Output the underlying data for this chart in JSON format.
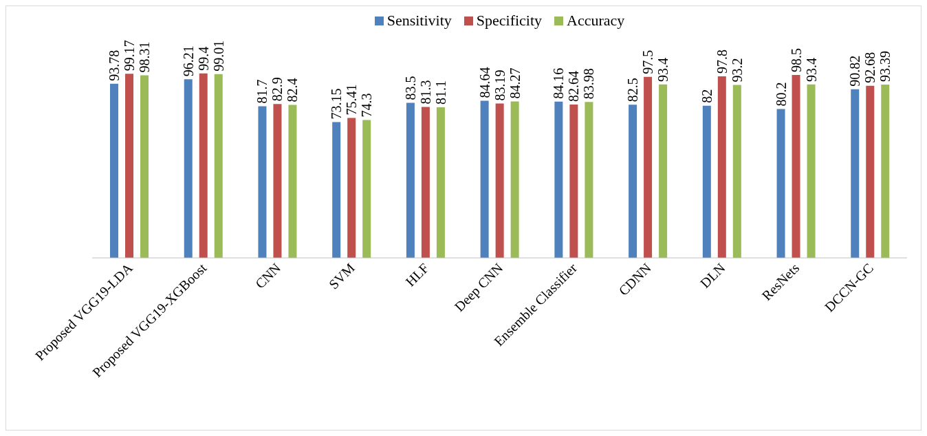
{
  "chart_data": {
    "type": "bar",
    "categories": [
      "Proposed VGG19-LDA",
      "Proposed VGG19-XGBoost",
      "CNN",
      "SVM",
      "HLF",
      "Deep CNN",
      "Ensemble Classifier",
      "CDNN",
      "DLN",
      "ResNets",
      "DCCN-GC"
    ],
    "series": [
      {
        "name": "Sensitivity",
        "color": "#4f81bd",
        "values": [
          93.78,
          96.21,
          81.7,
          73.15,
          83.5,
          84.64,
          84.16,
          82.5,
          82,
          80.2,
          90.82
        ]
      },
      {
        "name": "Specificity",
        "color": "#c0504d",
        "values": [
          99.17,
          99.4,
          82.9,
          75.41,
          81.3,
          83.19,
          82.64,
          97.5,
          97.8,
          98.5,
          92.68
        ]
      },
      {
        "name": "Accuracy",
        "color": "#9bbb59",
        "values": [
          98.31,
          99.01,
          82.4,
          74.3,
          81.1,
          84.27,
          83.98,
          93.4,
          93.2,
          93.4,
          93.39
        ]
      }
    ],
    "tick_labels": "x",
    "data_labels": true,
    "legend": "top",
    "grid": false
  }
}
